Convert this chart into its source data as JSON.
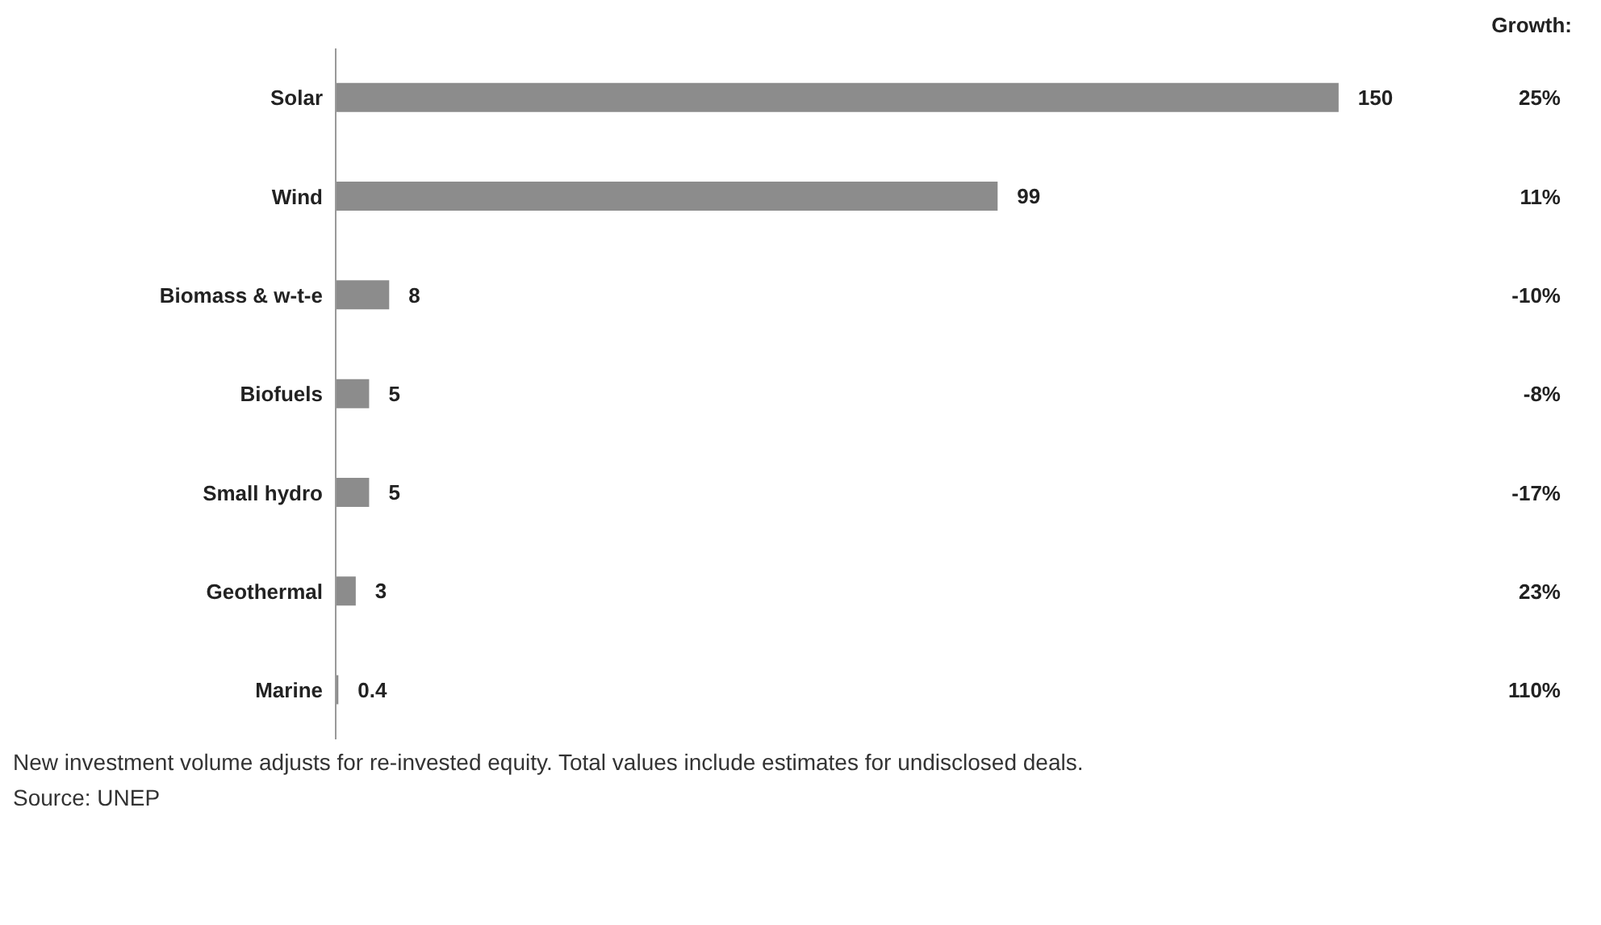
{
  "chart_data": {
    "type": "bar",
    "orientation": "horizontal",
    "categories": [
      "Solar",
      "Wind",
      "Biomass & w-t-e",
      "Biofuels",
      "Small hydro",
      "Geothermal",
      "Marine"
    ],
    "values": [
      150,
      99,
      8,
      5,
      5,
      3,
      0.4
    ],
    "color": "#8c8c8c",
    "data_labels": true,
    "grid": false,
    "legend": false,
    "annotations": [
      "Growth:",
      "25%",
      "11%",
      "-10%",
      "-8%",
      "-17%",
      "23%",
      "110%",
      "New investment volume adjusts for re-invested equity. Total values include estimates for undisclosed deals.",
      "Source: UNEP"
    ]
  }
}
